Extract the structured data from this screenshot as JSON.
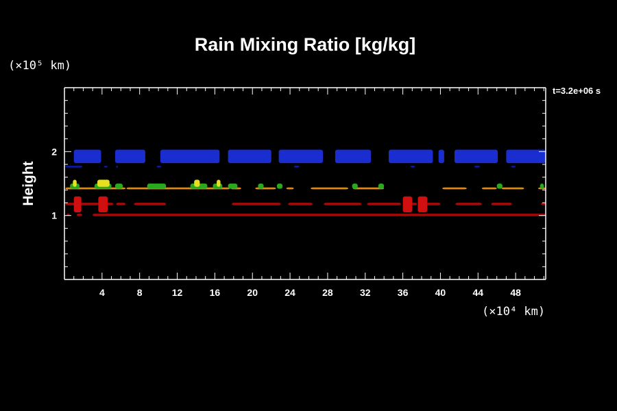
{
  "chart_data": {
    "type": "heatmap",
    "title": "Rain Mixing Ratio [kg/kg]",
    "ylabel": "Height",
    "y_unit": "(×10⁵ km)",
    "x_unit": "(×10⁴ km)",
    "time_label": "t=3.2e+06 s",
    "xlim": [
      0,
      51.2
    ],
    "ylim": [
      0,
      3
    ],
    "x_ticks": [
      4,
      8,
      12,
      16,
      20,
      24,
      28,
      32,
      36,
      40,
      44,
      48
    ],
    "y_ticks": [
      1,
      2
    ],
    "colors": {
      "background": "#000000",
      "axis": "#ffffff",
      "blue": "#1a2ecf",
      "dark_blue": "#0b1a9a",
      "orange": "#d98a18",
      "green": "#2aa81e",
      "yellow": "#e6e020",
      "red": "#9c0a0a",
      "bright_red": "#d01010"
    },
    "layers": [
      {
        "name": "upper blue band",
        "color": "blue",
        "y": [
          1.82,
          2.03
        ],
        "segments": [
          [
            1.0,
            3.9
          ],
          [
            5.4,
            8.6
          ],
          [
            10.2,
            16.5
          ],
          [
            17.4,
            22.0
          ],
          [
            22.8,
            27.5
          ],
          [
            28.8,
            32.6
          ],
          [
            34.5,
            39.2
          ],
          [
            39.8,
            40.4
          ],
          [
            41.5,
            46.1
          ],
          [
            47.0,
            51.2
          ]
        ]
      },
      {
        "name": "lower blue fragments",
        "color": "dark_blue",
        "y": [
          1.75,
          1.78
        ],
        "segments": [
          [
            0.1,
            1.9
          ],
          [
            4.2,
            4.6
          ],
          [
            5.5,
            5.7
          ],
          [
            9.8,
            10.3
          ],
          [
            24.4,
            25.0
          ],
          [
            36.8,
            37.3
          ],
          [
            43.6,
            44.2
          ],
          [
            47.5,
            48.0
          ]
        ]
      },
      {
        "name": "orange melting band",
        "color": "orange",
        "y": [
          1.41,
          1.44
        ],
        "segments": [
          [
            0.1,
            6.5
          ],
          [
            6.6,
            17.6
          ],
          [
            17.7,
            18.8
          ],
          [
            20.3,
            22.5
          ],
          [
            23.6,
            24.4
          ],
          [
            26.2,
            30.2
          ],
          [
            30.7,
            34.0
          ],
          [
            40.2,
            42.8
          ],
          [
            44.4,
            46.0
          ],
          [
            46.5,
            48.9
          ],
          [
            50.4,
            51.2
          ]
        ]
      },
      {
        "name": "green patches",
        "color": "green",
        "y": [
          1.42,
          1.5
        ],
        "segments": [
          [
            0.6,
            1.6
          ],
          [
            3.2,
            5.0
          ],
          [
            5.4,
            6.2
          ],
          [
            8.8,
            10.8
          ],
          [
            13.4,
            15.2
          ],
          [
            15.8,
            16.8
          ],
          [
            17.4,
            18.4
          ],
          [
            20.6,
            21.2
          ],
          [
            22.6,
            23.2
          ],
          [
            30.6,
            31.2
          ],
          [
            33.4,
            34.0
          ],
          [
            46.0,
            46.6
          ],
          [
            50.6,
            51.0
          ]
        ]
      },
      {
        "name": "yellow patches",
        "color": "yellow",
        "y": [
          1.45,
          1.56
        ],
        "segments": [
          [
            0.9,
            1.3
          ],
          [
            3.5,
            4.8
          ],
          [
            13.8,
            14.4
          ],
          [
            16.2,
            16.6
          ]
        ]
      },
      {
        "name": "red band middle",
        "color": "red",
        "y": [
          1.16,
          1.2
        ],
        "segments": [
          [
            0.1,
            3.7
          ],
          [
            4.0,
            5.2
          ],
          [
            5.5,
            6.5
          ],
          [
            7.4,
            10.8
          ],
          [
            17.8,
            23.0
          ],
          [
            23.8,
            26.4
          ],
          [
            27.6,
            31.6
          ],
          [
            32.2,
            35.8
          ],
          [
            36.4,
            37.5
          ],
          [
            38.3,
            40.0
          ],
          [
            41.6,
            44.4
          ],
          [
            45.4,
            47.6
          ],
          [
            50.7,
            51.2
          ]
        ]
      },
      {
        "name": "red band lower",
        "color": "red",
        "y": [
          0.99,
          1.03
        ],
        "segments": [
          [
            0.2,
            0.6
          ],
          [
            1.3,
            1.9
          ],
          [
            3.0,
            51.2
          ]
        ]
      },
      {
        "name": "red blobs",
        "color": "bright_red",
        "y": [
          1.05,
          1.3
        ],
        "segments": [
          [
            1.0,
            1.8
          ],
          [
            3.6,
            4.6
          ],
          [
            36.0,
            37.0
          ],
          [
            37.6,
            38.6
          ]
        ]
      }
    ]
  }
}
